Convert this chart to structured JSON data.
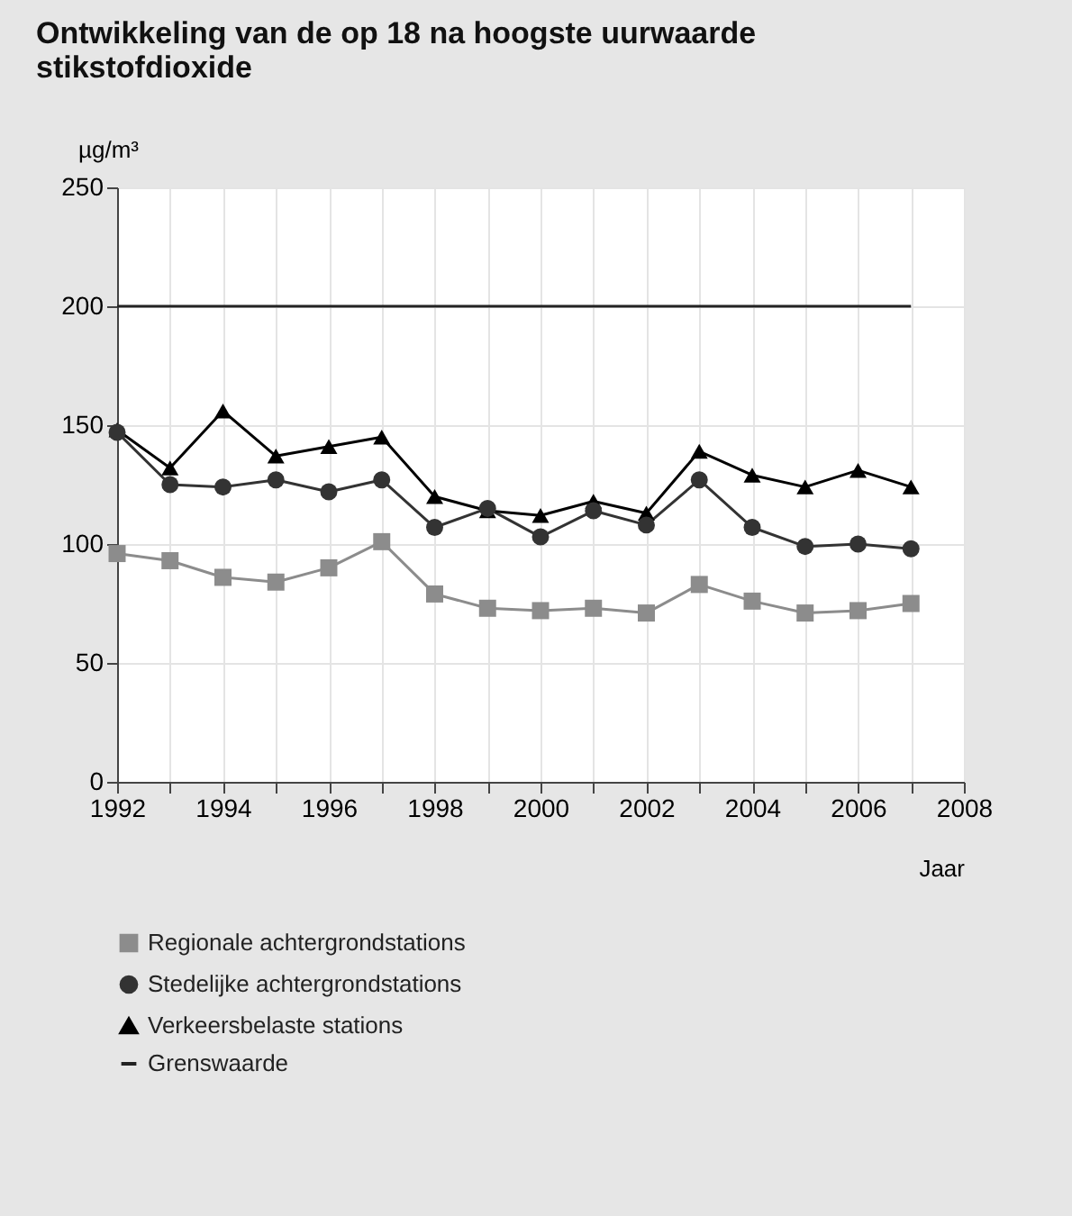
{
  "chart_data": {
    "type": "line",
    "title": [
      "Ontwikkeling van de op 18 na hoogste uurwaarde",
      "stikstofdioxide"
    ],
    "ylabel": "µg/m³",
    "xlabel": "Jaar",
    "x": [
      1992,
      1993,
      1994,
      1995,
      1996,
      1997,
      1998,
      1999,
      2000,
      2001,
      2002,
      2003,
      2004,
      2005,
      2006,
      2007
    ],
    "series": [
      {
        "name": "Regionale achtergrondstations",
        "color": "#8c8c8c",
        "marker": "square",
        "values": [
          96,
          93,
          86,
          84,
          90,
          101,
          79,
          73,
          72,
          73,
          71,
          83,
          76,
          71,
          72,
          75
        ]
      },
      {
        "name": "Stedelijke achtergrondstations",
        "color": "#333333",
        "marker": "circle",
        "values": [
          147,
          125,
          124,
          127,
          122,
          127,
          107,
          115,
          103,
          114,
          108,
          127,
          107,
          99,
          100,
          98
        ]
      },
      {
        "name": "Verkeersbelaste stations",
        "color": "#000000",
        "marker": "triangle",
        "values": [
          148,
          132,
          156,
          137,
          141,
          145,
          120,
          114,
          112,
          118,
          113,
          139,
          129,
          124,
          131,
          124
        ]
      },
      {
        "name": "Grenswaarde",
        "color": "#222222",
        "marker": "none",
        "values": [
          200,
          200,
          200,
          200,
          200,
          200,
          200,
          200,
          200,
          200,
          200,
          200,
          200,
          200,
          200,
          200
        ]
      }
    ],
    "xlim": [
      1992,
      2008
    ],
    "xticks": [
      1992,
      {
        "value": 1993,
        "label": null
      },
      1994,
      {
        "value": 1995,
        "label": null
      },
      1996,
      {
        "value": 1997,
        "label": null
      },
      1998,
      {
        "value": 1999,
        "label": null
      },
      2000,
      {
        "value": 2001,
        "label": null
      },
      2002,
      {
        "value": 2003,
        "label": null
      },
      2004,
      {
        "value": 2005,
        "label": null
      },
      2006,
      {
        "value": 2007,
        "label": null
      },
      2008
    ],
    "ylim": [
      0,
      250
    ],
    "yticks": [
      0,
      50,
      100,
      150,
      200,
      250
    ],
    "grid": true,
    "legend": "bottom"
  }
}
